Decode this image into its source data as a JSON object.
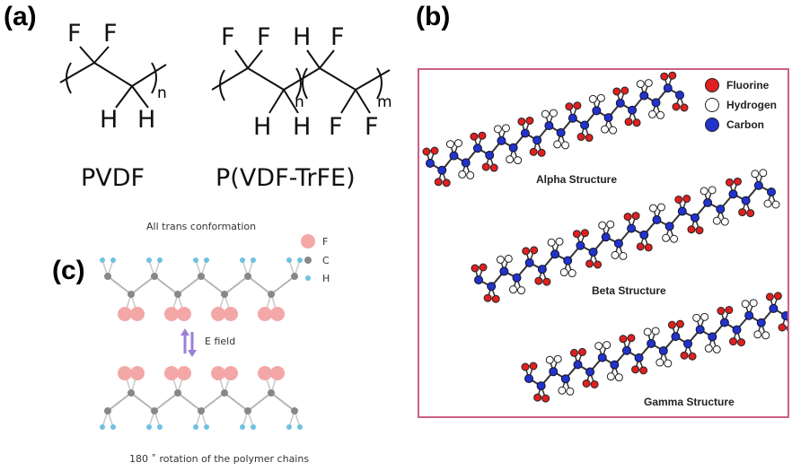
{
  "panels": {
    "a": "(a)",
    "b": "(b)",
    "c": "(c)"
  },
  "panel_a": {
    "pvdf": {
      "name": "PVDF",
      "top_atoms": [
        "F",
        "F"
      ],
      "bottom_atoms": [
        "H",
        "H"
      ],
      "subscript": "n"
    },
    "pvdf_trfe": {
      "name": "P(VDF-TrFE)",
      "top_atoms": [
        "F",
        "F",
        "H",
        "F"
      ],
      "bottom_atoms": [
        "H",
        "H",
        "F",
        "F"
      ],
      "subscript_1": "n",
      "subscript_2": "m"
    }
  },
  "panel_b": {
    "legend": [
      {
        "label": "Fluorine",
        "color": "#e02020"
      },
      {
        "label": "Hydrogen",
        "color": "#ffffff"
      },
      {
        "label": "Carbon",
        "color": "#2233cc"
      }
    ],
    "structures": [
      "Alpha Structure",
      "Beta Structure",
      "Gamma Structure"
    ],
    "border_color": "#c9608a"
  },
  "panel_c": {
    "title": "All trans conformation",
    "legend": [
      {
        "label": "F",
        "color": "#f4a7a7"
      },
      {
        "label": "C",
        "color": "#888888"
      },
      {
        "label": "H",
        "color": "#6fc1e0"
      }
    ],
    "field_label": "E field",
    "caption": "180 ˚ rotation of the polymer chains",
    "arrow_color": "#9b7fd6"
  }
}
